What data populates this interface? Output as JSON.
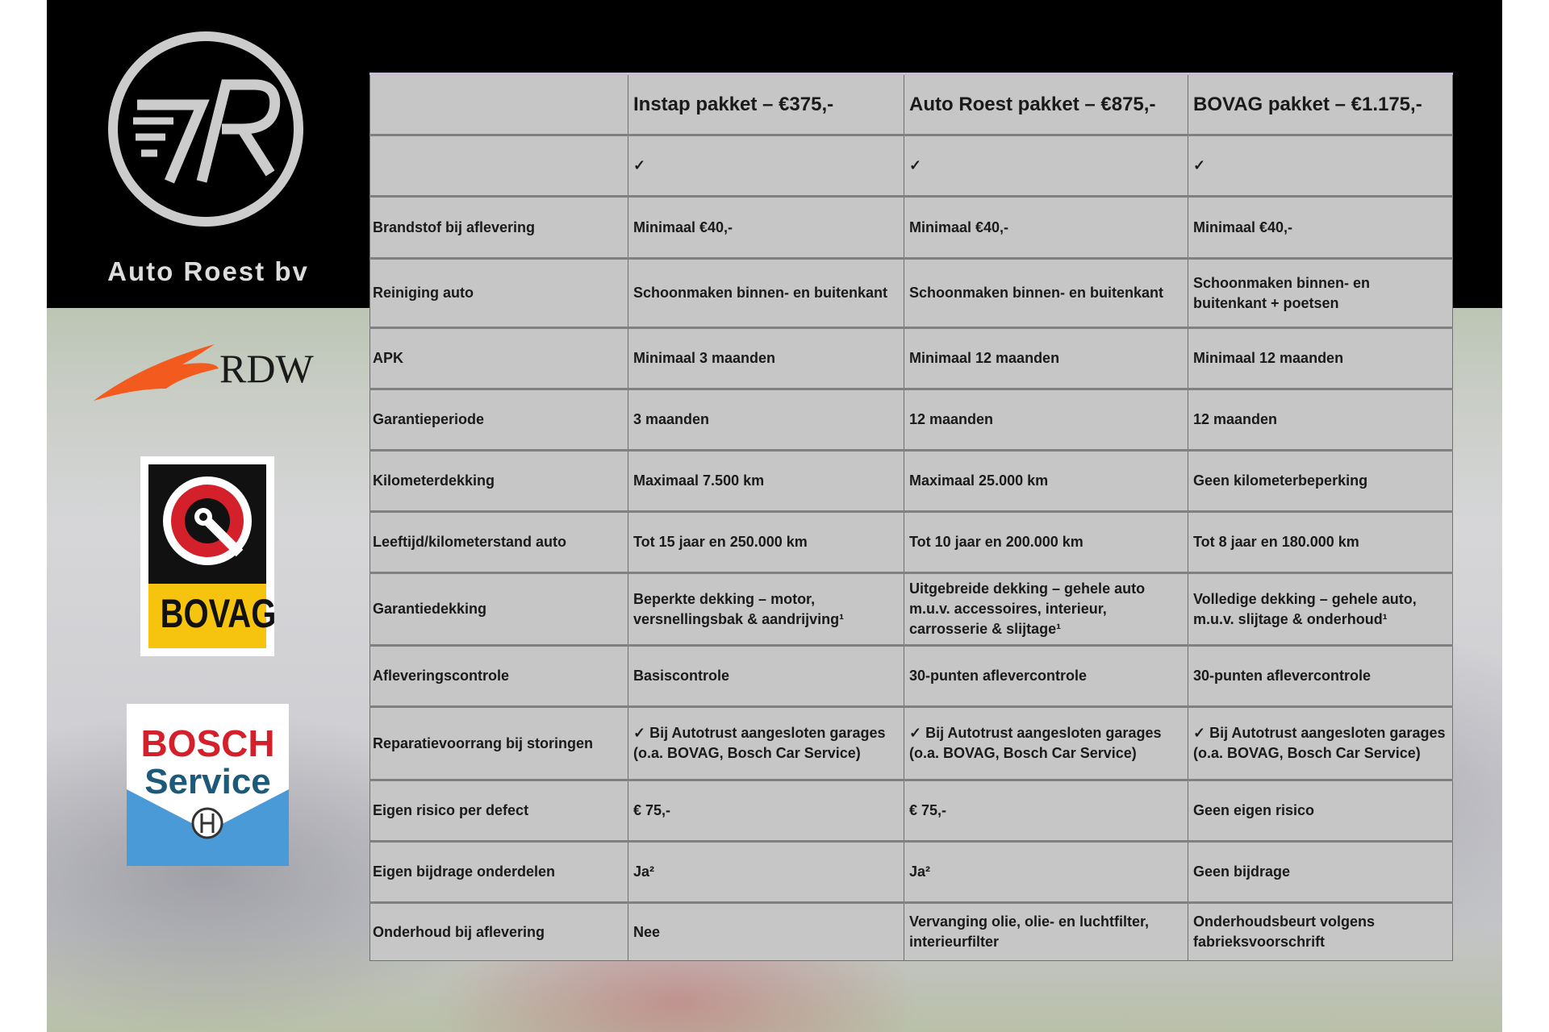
{
  "brand": {
    "name": "Auto Roest bv",
    "logo_mark": "AR"
  },
  "logos": {
    "rdw": "RDW",
    "bovag": "BOVAG",
    "bosch_line1": "BOSCH",
    "bosch_line2": "Service"
  },
  "table": {
    "headers": [
      "",
      "Instap pakket – €375,-",
      "Auto Roest pakket – €875,-",
      "BOVAG pakket – €1.175,-"
    ],
    "rows": [
      [
        "",
        "✓",
        "✓",
        "✓"
      ],
      [
        "Brandstof bij aflevering",
        "Minimaal €40,-",
        "Minimaal €40,-",
        "Minimaal €40,-"
      ],
      [
        "Reiniging auto",
        "Schoonmaken binnen- en buitenkant",
        "Schoonmaken binnen- en buitenkant",
        "Schoonmaken binnen- en buitenkant + poetsen"
      ],
      [
        "APK",
        "Minimaal 3 maanden",
        "Minimaal 12 maanden",
        "Minimaal 12 maanden"
      ],
      [
        "Garantieperiode",
        "3 maanden",
        "12 maanden",
        "12 maanden"
      ],
      [
        "Kilometerdekking",
        "Maximaal 7.500 km",
        "Maximaal 25.000 km",
        "Geen kilometerbeperking"
      ],
      [
        "Leeftijd/kilometerstand auto",
        "Tot 15 jaar en 250.000 km",
        "Tot 10 jaar en 200.000 km",
        "Tot 8 jaar en 180.000 km"
      ],
      [
        "Garantiedekking",
        "Beperkte dekking – motor, versnellingsbak & aandrijving¹",
        "Uitgebreide dekking – gehele auto m.u.v. accessoires, interieur, carrosserie & slijtage¹",
        "Volledige dekking – gehele auto, m.u.v. slijtage & onderhoud¹"
      ],
      [
        "Afleveringscontrole",
        "Basiscontrole",
        "30-punten aflevercontrole",
        "30-punten aflevercontrole"
      ],
      [
        "Reparatievoorrang bij storingen",
        "✓ Bij Autotrust aangesloten garages (o.a. BOVAG, Bosch Car Service)",
        "✓ Bij Autotrust aangesloten garages (o.a. BOVAG, Bosch Car Service)",
        "✓ Bij Autotrust aangesloten garages (o.a. BOVAG, Bosch Car Service)"
      ],
      [
        "Eigen risico per defect",
        "€ 75,-",
        "€ 75,-",
        "Geen eigen risico"
      ],
      [
        "Eigen bijdrage onderdelen",
        "Ja²",
        "Ja²",
        "Geen bijdrage"
      ],
      [
        "Onderhoud bij aflevering",
        "Nee",
        "Vervanging olie, olie- en luchtfilter, interieurfilter",
        "Onderhoudsbeurt volgens fabrieksvoorschrift"
      ]
    ]
  },
  "colors": {
    "table_bg": "#c6c6c6",
    "bovag_yellow": "#f6c40f",
    "bosch_red": "#d4202a",
    "bosch_blue": "#4a9ad8",
    "rdw_orange": "#f25a1e"
  }
}
